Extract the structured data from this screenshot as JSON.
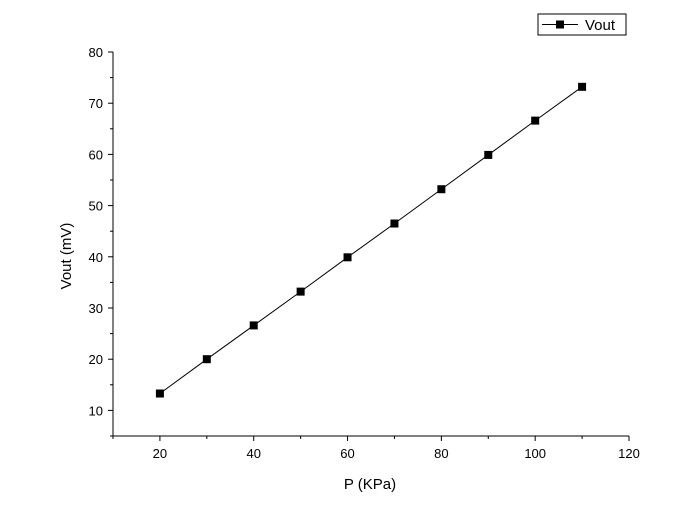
{
  "chart_data": {
    "type": "line",
    "title": "",
    "xlabel": "P (KPa)",
    "ylabel": "Vout (mV)",
    "xlim": [
      10,
      120
    ],
    "ylim": [
      5,
      80
    ],
    "xticks": [
      20,
      40,
      60,
      80,
      100,
      120
    ],
    "yticks": [
      10,
      20,
      30,
      40,
      50,
      60,
      70,
      80
    ],
    "grid": false,
    "legend_position": "top-right",
    "series": [
      {
        "name": "Vout",
        "marker": "square",
        "color": "#000000",
        "x": [
          20,
          30,
          40,
          50,
          60,
          70,
          80,
          90,
          100,
          110
        ],
        "y": [
          13.3,
          20.0,
          26.6,
          33.2,
          39.9,
          46.5,
          53.2,
          59.9,
          66.6,
          73.2
        ]
      }
    ]
  }
}
